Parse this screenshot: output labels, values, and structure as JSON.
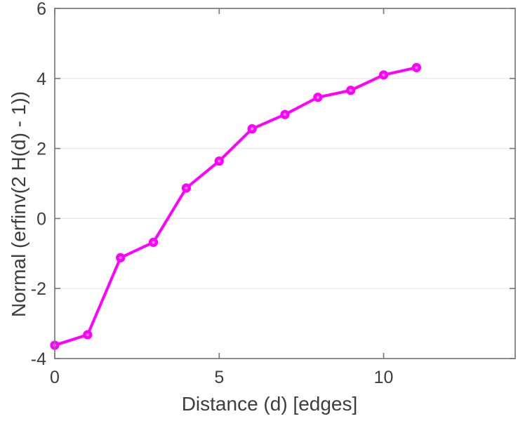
{
  "figure": {
    "background": "#ffffff"
  },
  "chart_data": {
    "type": "line",
    "xlabel": "Distance (d) [edges]",
    "ylabel": "Normal (erfinv(2 H(d) - 1))",
    "x": [
      0,
      1,
      2,
      3,
      4,
      5,
      6,
      7,
      8,
      9,
      10,
      11
    ],
    "y": [
      -3.62,
      -3.32,
      -1.12,
      -0.68,
      0.87,
      1.64,
      2.56,
      2.97,
      3.46,
      3.66,
      4.1,
      4.31
    ],
    "xlim": [
      0,
      14
    ],
    "ylim": [
      -4,
      6
    ],
    "xticks": [
      0,
      5,
      10
    ],
    "yticks": [
      -4,
      -2,
      0,
      2,
      4,
      6
    ],
    "grid": "horizontal-only",
    "legend": "none",
    "series_color": "#ff00ff",
    "marker": "circle",
    "marker_center_color": "#ff8af2",
    "axis_color": "#7a7a7a",
    "grid_color": "#e7e7e7",
    "label_color": "#3d3d3d"
  }
}
